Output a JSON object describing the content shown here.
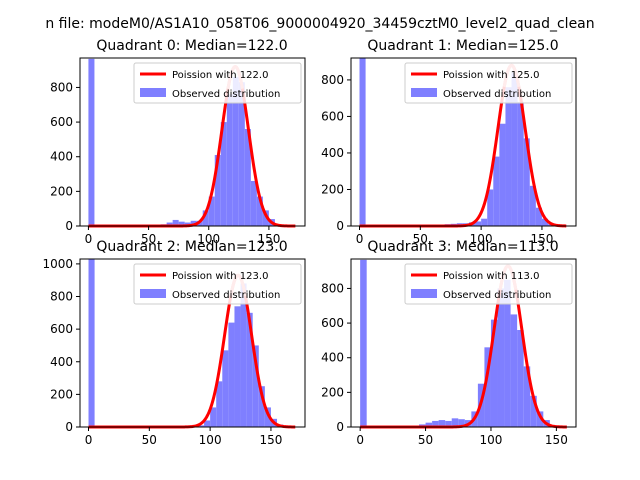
{
  "figure": {
    "suptitle": "n file: modeM0/AS1A10_058T06_9000004920_34459cztM0_level2_quad_clean"
  },
  "colors": {
    "hist": "#7f7fff",
    "poisson": "#ff0000",
    "poisson_peak": "#ff8080",
    "axes": "#000000"
  },
  "chart_data": [
    {
      "type": "bar",
      "title": "Quadrant 0: Median=122.0",
      "median": 122.0,
      "xlim": [
        -7,
        180
      ],
      "ylim": [
        0,
        970
      ],
      "xticks": [
        0,
        50,
        100,
        150
      ],
      "yticks": [
        0,
        200,
        400,
        600,
        800
      ],
      "legend": {
        "placement": "upper right",
        "poisson_label": "Poission with 122.0",
        "hist_label": "Observed distribution"
      },
      "bins": [
        {
          "x": 0,
          "y": 965
        },
        {
          "x": 55,
          "y": 5
        },
        {
          "x": 60,
          "y": 10
        },
        {
          "x": 65,
          "y": 20
        },
        {
          "x": 70,
          "y": 35
        },
        {
          "x": 75,
          "y": 25
        },
        {
          "x": 80,
          "y": 20
        },
        {
          "x": 85,
          "y": 30
        },
        {
          "x": 90,
          "y": 30
        },
        {
          "x": 95,
          "y": 90
        },
        {
          "x": 100,
          "y": 170
        },
        {
          "x": 105,
          "y": 410
        },
        {
          "x": 110,
          "y": 600
        },
        {
          "x": 115,
          "y": 760
        },
        {
          "x": 120,
          "y": 860
        },
        {
          "x": 125,
          "y": 830
        },
        {
          "x": 130,
          "y": 560
        },
        {
          "x": 135,
          "y": 260
        },
        {
          "x": 140,
          "y": 170
        },
        {
          "x": 145,
          "y": 90
        },
        {
          "x": 150,
          "y": 40
        },
        {
          "x": 155,
          "y": 10
        }
      ],
      "curve": {
        "mean": 122.0,
        "peak": 920,
        "sigma": 11.0,
        "x_min": 0,
        "x_max": 172
      }
    },
    {
      "type": "bar",
      "title": "Quadrant 1: Median=125.0",
      "median": 125.0,
      "xlim": [
        -7,
        178
      ],
      "ylim": [
        0,
        920
      ],
      "xticks": [
        0,
        50,
        100,
        150
      ],
      "yticks": [
        0,
        200,
        400,
        600,
        800
      ],
      "legend": {
        "placement": "upper right",
        "poisson_label": "Poission with 125.0",
        "hist_label": "Observed distribution"
      },
      "bins": [
        {
          "x": 0,
          "y": 920
        },
        {
          "x": 60,
          "y": 5
        },
        {
          "x": 65,
          "y": 8
        },
        {
          "x": 70,
          "y": 10
        },
        {
          "x": 75,
          "y": 12
        },
        {
          "x": 80,
          "y": 15
        },
        {
          "x": 85,
          "y": 15
        },
        {
          "x": 90,
          "y": 20
        },
        {
          "x": 95,
          "y": 25
        },
        {
          "x": 100,
          "y": 40
        },
        {
          "x": 105,
          "y": 200
        },
        {
          "x": 110,
          "y": 380
        },
        {
          "x": 115,
          "y": 560
        },
        {
          "x": 120,
          "y": 760
        },
        {
          "x": 125,
          "y": 840
        },
        {
          "x": 130,
          "y": 680
        },
        {
          "x": 135,
          "y": 480
        },
        {
          "x": 140,
          "y": 220
        },
        {
          "x": 145,
          "y": 100
        },
        {
          "x": 150,
          "y": 40
        },
        {
          "x": 155,
          "y": 10
        }
      ],
      "curve": {
        "mean": 125.0,
        "peak": 880,
        "sigma": 11.2,
        "x_min": 0,
        "x_max": 170
      }
    },
    {
      "type": "bar",
      "title": "Quadrant 2: Median=123.0",
      "median": 123.0,
      "xlim": [
        -7,
        178
      ],
      "ylim": [
        0,
        1030
      ],
      "xticks": [
        0,
        50,
        100,
        150
      ],
      "yticks": [
        0,
        200,
        400,
        600,
        800,
        1000
      ],
      "legend": {
        "placement": "upper right",
        "poisson_label": "Poission with 123.0",
        "hist_label": "Observed distribution"
      },
      "bins": [
        {
          "x": 0,
          "y": 1030
        },
        {
          "x": 85,
          "y": 3
        },
        {
          "x": 90,
          "y": 10
        },
        {
          "x": 95,
          "y": 40
        },
        {
          "x": 100,
          "y": 120
        },
        {
          "x": 105,
          "y": 280
        },
        {
          "x": 110,
          "y": 470
        },
        {
          "x": 115,
          "y": 640
        },
        {
          "x": 120,
          "y": 740
        },
        {
          "x": 125,
          "y": 880
        },
        {
          "x": 130,
          "y": 700
        },
        {
          "x": 135,
          "y": 500
        },
        {
          "x": 140,
          "y": 250
        },
        {
          "x": 145,
          "y": 120
        },
        {
          "x": 150,
          "y": 50
        },
        {
          "x": 155,
          "y": 15
        },
        {
          "x": 160,
          "y": 5
        }
      ],
      "curve": {
        "mean": 123.0,
        "peak": 930,
        "sigma": 11.1,
        "x_min": 0,
        "x_max": 170
      }
    },
    {
      "type": "bar",
      "title": "Quadrant 3: Median=113.0",
      "median": 113.0,
      "xlim": [
        -7,
        165
      ],
      "ylim": [
        0,
        970
      ],
      "xticks": [
        0,
        50,
        100,
        150
      ],
      "yticks": [
        0,
        200,
        400,
        600,
        800
      ],
      "legend": {
        "placement": "upper right",
        "poisson_label": "Poission with 113.0",
        "hist_label": "Observed distribution"
      },
      "bins": [
        {
          "x": 0,
          "y": 965
        },
        {
          "x": 40,
          "y": 5
        },
        {
          "x": 45,
          "y": 15
        },
        {
          "x": 50,
          "y": 25
        },
        {
          "x": 55,
          "y": 35
        },
        {
          "x": 60,
          "y": 40
        },
        {
          "x": 65,
          "y": 35
        },
        {
          "x": 70,
          "y": 50
        },
        {
          "x": 75,
          "y": 45
        },
        {
          "x": 80,
          "y": 40
        },
        {
          "x": 85,
          "y": 90
        },
        {
          "x": 90,
          "y": 250
        },
        {
          "x": 95,
          "y": 460
        },
        {
          "x": 100,
          "y": 620
        },
        {
          "x": 105,
          "y": 800
        },
        {
          "x": 110,
          "y": 850
        },
        {
          "x": 115,
          "y": 650
        },
        {
          "x": 120,
          "y": 560
        },
        {
          "x": 125,
          "y": 350
        },
        {
          "x": 130,
          "y": 180
        },
        {
          "x": 135,
          "y": 90
        },
        {
          "x": 140,
          "y": 40
        },
        {
          "x": 145,
          "y": 10
        }
      ],
      "curve": {
        "mean": 113.0,
        "peak": 930,
        "sigma": 10.6,
        "x_min": 0,
        "x_max": 158
      }
    }
  ]
}
